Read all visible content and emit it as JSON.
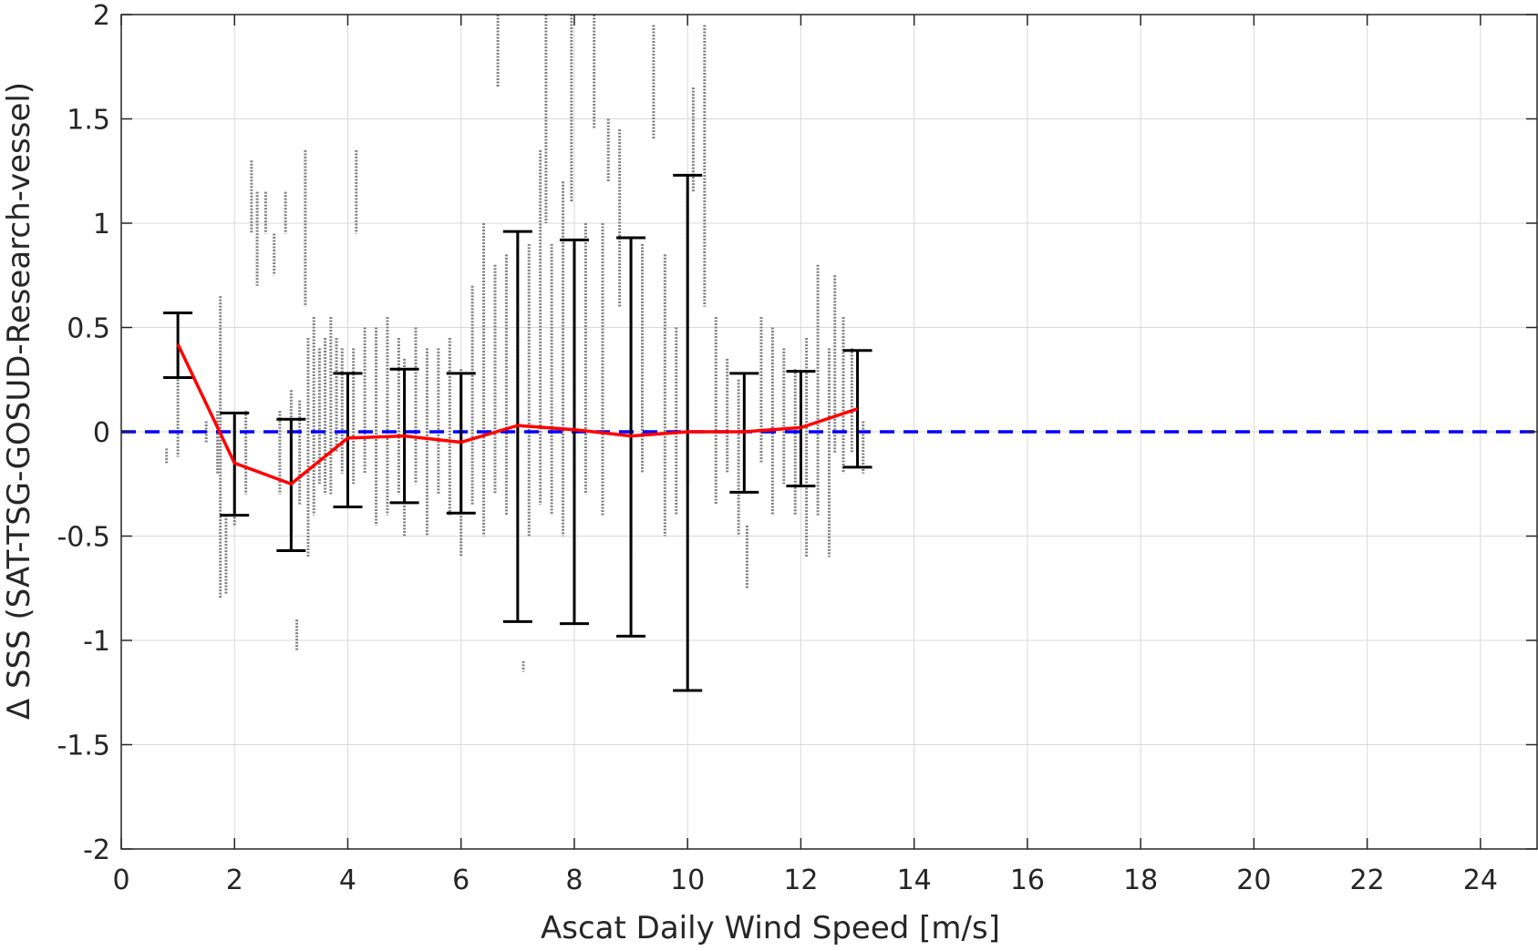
{
  "chart_data": {
    "type": "scatter",
    "title": "",
    "xlabel": "Ascat Daily Wind Speed [m/s]",
    "ylabel": "Δ SSS (SAT-TSG-GOSUD-Research-vessel)",
    "xlim": [
      0,
      25
    ],
    "ylim": [
      -2,
      2
    ],
    "xticks": [
      0,
      2,
      4,
      6,
      8,
      10,
      12,
      14,
      16,
      18,
      20,
      22,
      24
    ],
    "yticks": [
      -2,
      -1.5,
      -1,
      -0.5,
      0,
      0.5,
      1,
      1.5,
      2
    ],
    "xtick_labels": [
      "0",
      "2",
      "4",
      "6",
      "8",
      "10",
      "12",
      "14",
      "16",
      "18",
      "20",
      "22",
      "24"
    ],
    "ytick_labels": [
      "-2",
      "-1.5",
      "-1",
      "-0.5",
      "0",
      "0.5",
      "1",
      "1.5",
      "2"
    ],
    "grid": true,
    "colors": {
      "scatter": "#808080",
      "mean_line": "#ff0000",
      "errorbar": "#000000",
      "zero_line": "#0000ff",
      "grid": "#d9d9d9",
      "axes": "#262626"
    },
    "scatter_columns": [
      {
        "x": 0.8,
        "min": -0.15,
        "max": -0.08
      },
      {
        "x": 1.0,
        "min": -0.12,
        "max": 0.42
      },
      {
        "x": 1.5,
        "min": -0.05,
        "max": 0.05
      },
      {
        "x": 1.7,
        "min": -0.2,
        "max": 0.1
      },
      {
        "x": 1.75,
        "min": -0.8,
        "max": 0.65
      },
      {
        "x": 1.85,
        "min": -0.78,
        "max": -0.4
      },
      {
        "x": 2.0,
        "min": -0.45,
        "max": 0.05
      },
      {
        "x": 2.2,
        "min": -0.3,
        "max": 0.1
      },
      {
        "x": 2.3,
        "min": 0.95,
        "max": 1.3
      },
      {
        "x": 2.4,
        "min": 0.7,
        "max": 1.15
      },
      {
        "x": 2.55,
        "min": 0.95,
        "max": 1.15
      },
      {
        "x": 2.7,
        "min": 0.75,
        "max": 0.95
      },
      {
        "x": 2.8,
        "min": -0.3,
        "max": 0.1
      },
      {
        "x": 2.9,
        "min": 0.95,
        "max": 1.15
      },
      {
        "x": 3.0,
        "min": -0.5,
        "max": 0.2
      },
      {
        "x": 3.1,
        "min": -1.05,
        "max": -0.9
      },
      {
        "x": 3.15,
        "min": -0.35,
        "max": 0.15
      },
      {
        "x": 3.25,
        "min": 0.6,
        "max": 1.35
      },
      {
        "x": 3.3,
        "min": -0.6,
        "max": 0.45
      },
      {
        "x": 3.4,
        "min": -0.4,
        "max": 0.55
      },
      {
        "x": 3.5,
        "min": -0.25,
        "max": 0.4
      },
      {
        "x": 3.6,
        "min": -0.3,
        "max": 0.45
      },
      {
        "x": 3.7,
        "min": -0.3,
        "max": 0.55
      },
      {
        "x": 3.8,
        "min": -0.1,
        "max": 0.45
      },
      {
        "x": 3.9,
        "min": -0.2,
        "max": 0.4
      },
      {
        "x": 4.1,
        "min": -0.25,
        "max": 0.4
      },
      {
        "x": 4.15,
        "min": 0.95,
        "max": 1.35
      },
      {
        "x": 4.3,
        "min": -0.2,
        "max": 0.5
      },
      {
        "x": 4.5,
        "min": -0.45,
        "max": 0.5
      },
      {
        "x": 4.7,
        "min": -0.4,
        "max": 0.55
      },
      {
        "x": 4.9,
        "min": -0.3,
        "max": 0.45
      },
      {
        "x": 5.0,
        "min": -0.5,
        "max": 0.35
      },
      {
        "x": 5.2,
        "min": -0.25,
        "max": 0.5
      },
      {
        "x": 5.4,
        "min": -0.5,
        "max": 0.4
      },
      {
        "x": 5.6,
        "min": -0.3,
        "max": 0.4
      },
      {
        "x": 5.8,
        "min": -0.4,
        "max": 0.45
      },
      {
        "x": 6.0,
        "min": -0.6,
        "max": 0.3
      },
      {
        "x": 6.2,
        "min": -0.35,
        "max": 0.7
      },
      {
        "x": 6.4,
        "min": -0.5,
        "max": 1.0
      },
      {
        "x": 6.6,
        "min": -0.3,
        "max": 0.8
      },
      {
        "x": 6.65,
        "min": 1.65,
        "max": 2.0
      },
      {
        "x": 6.8,
        "min": -0.4,
        "max": 0.85
      },
      {
        "x": 7.0,
        "min": -0.3,
        "max": 0.95
      },
      {
        "x": 7.1,
        "min": -1.15,
        "max": -1.1
      },
      {
        "x": 7.2,
        "min": -0.5,
        "max": 0.9
      },
      {
        "x": 7.4,
        "min": -0.35,
        "max": 1.35
      },
      {
        "x": 7.5,
        "min": 1.0,
        "max": 2.0
      },
      {
        "x": 7.6,
        "min": -0.4,
        "max": 0.9
      },
      {
        "x": 7.8,
        "min": -0.5,
        "max": 1.2
      },
      {
        "x": 7.95,
        "min": 1.1,
        "max": 2.0
      },
      {
        "x": 8.0,
        "min": -0.3,
        "max": 0.9
      },
      {
        "x": 8.2,
        "min": -0.3,
        "max": 1.0
      },
      {
        "x": 8.35,
        "min": 1.45,
        "max": 2.0
      },
      {
        "x": 8.5,
        "min": -0.4,
        "max": 1.0
      },
      {
        "x": 8.6,
        "min": 1.2,
        "max": 1.5
      },
      {
        "x": 8.8,
        "min": 0.6,
        "max": 1.45
      },
      {
        "x": 9.0,
        "min": -0.6,
        "max": 0.9
      },
      {
        "x": 9.2,
        "min": -0.2,
        "max": 0.9
      },
      {
        "x": 9.4,
        "min": 1.4,
        "max": 1.95
      },
      {
        "x": 9.6,
        "min": -0.5,
        "max": 0.85
      },
      {
        "x": 9.8,
        "min": -0.4,
        "max": 0.5
      },
      {
        "x": 10.0,
        "min": -0.25,
        "max": 1.15
      },
      {
        "x": 10.1,
        "min": 1.15,
        "max": 1.65
      },
      {
        "x": 10.3,
        "min": 0.6,
        "max": 1.95
      },
      {
        "x": 10.5,
        "min": -0.35,
        "max": 0.55
      },
      {
        "x": 10.7,
        "min": -0.2,
        "max": 0.35
      },
      {
        "x": 10.9,
        "min": -0.5,
        "max": 0.25
      },
      {
        "x": 11.05,
        "min": -0.75,
        "max": -0.45
      },
      {
        "x": 11.3,
        "min": -0.15,
        "max": 0.55
      },
      {
        "x": 11.5,
        "min": -0.4,
        "max": 0.5
      },
      {
        "x": 11.7,
        "min": -0.25,
        "max": 0.4
      },
      {
        "x": 11.9,
        "min": -0.4,
        "max": 0.3
      },
      {
        "x": 12.1,
        "min": -0.6,
        "max": 0.45
      },
      {
        "x": 12.3,
        "min": -0.4,
        "max": 0.8
      },
      {
        "x": 12.5,
        "min": -0.6,
        "max": 0.4
      },
      {
        "x": 12.6,
        "min": -0.1,
        "max": 0.75
      },
      {
        "x": 12.75,
        "min": -0.2,
        "max": 0.55
      },
      {
        "x": 12.9,
        "min": -0.1,
        "max": 0.4
      },
      {
        "x": 13.0,
        "min": -0.1,
        "max": 0.25
      },
      {
        "x": 13.1,
        "min": -0.2,
        "max": 0.05
      }
    ],
    "series": [
      {
        "type": "errorbar",
        "x": [
          1,
          2,
          3,
          4,
          5,
          6,
          7,
          8,
          9,
          10,
          11,
          12,
          13
        ],
        "lower": [
          0.26,
          -0.4,
          -0.57,
          -0.36,
          -0.34,
          -0.39,
          -0.91,
          -0.92,
          -0.98,
          -1.24,
          -0.29,
          -0.26,
          -0.17
        ],
        "upper": [
          0.57,
          0.09,
          0.06,
          0.28,
          0.3,
          0.28,
          0.96,
          0.92,
          0.93,
          1.23,
          0.28,
          0.29,
          0.39
        ]
      },
      {
        "type": "line",
        "x": [
          1,
          2,
          3,
          4,
          5,
          6,
          7,
          8,
          9,
          10,
          11,
          12,
          13
        ],
        "values": [
          0.42,
          -0.15,
          -0.25,
          -0.03,
          -0.02,
          -0.05,
          0.03,
          0.01,
          -0.02,
          0.0,
          0.0,
          0.02,
          0.11
        ]
      },
      {
        "type": "hline",
        "y": 0
      }
    ]
  }
}
